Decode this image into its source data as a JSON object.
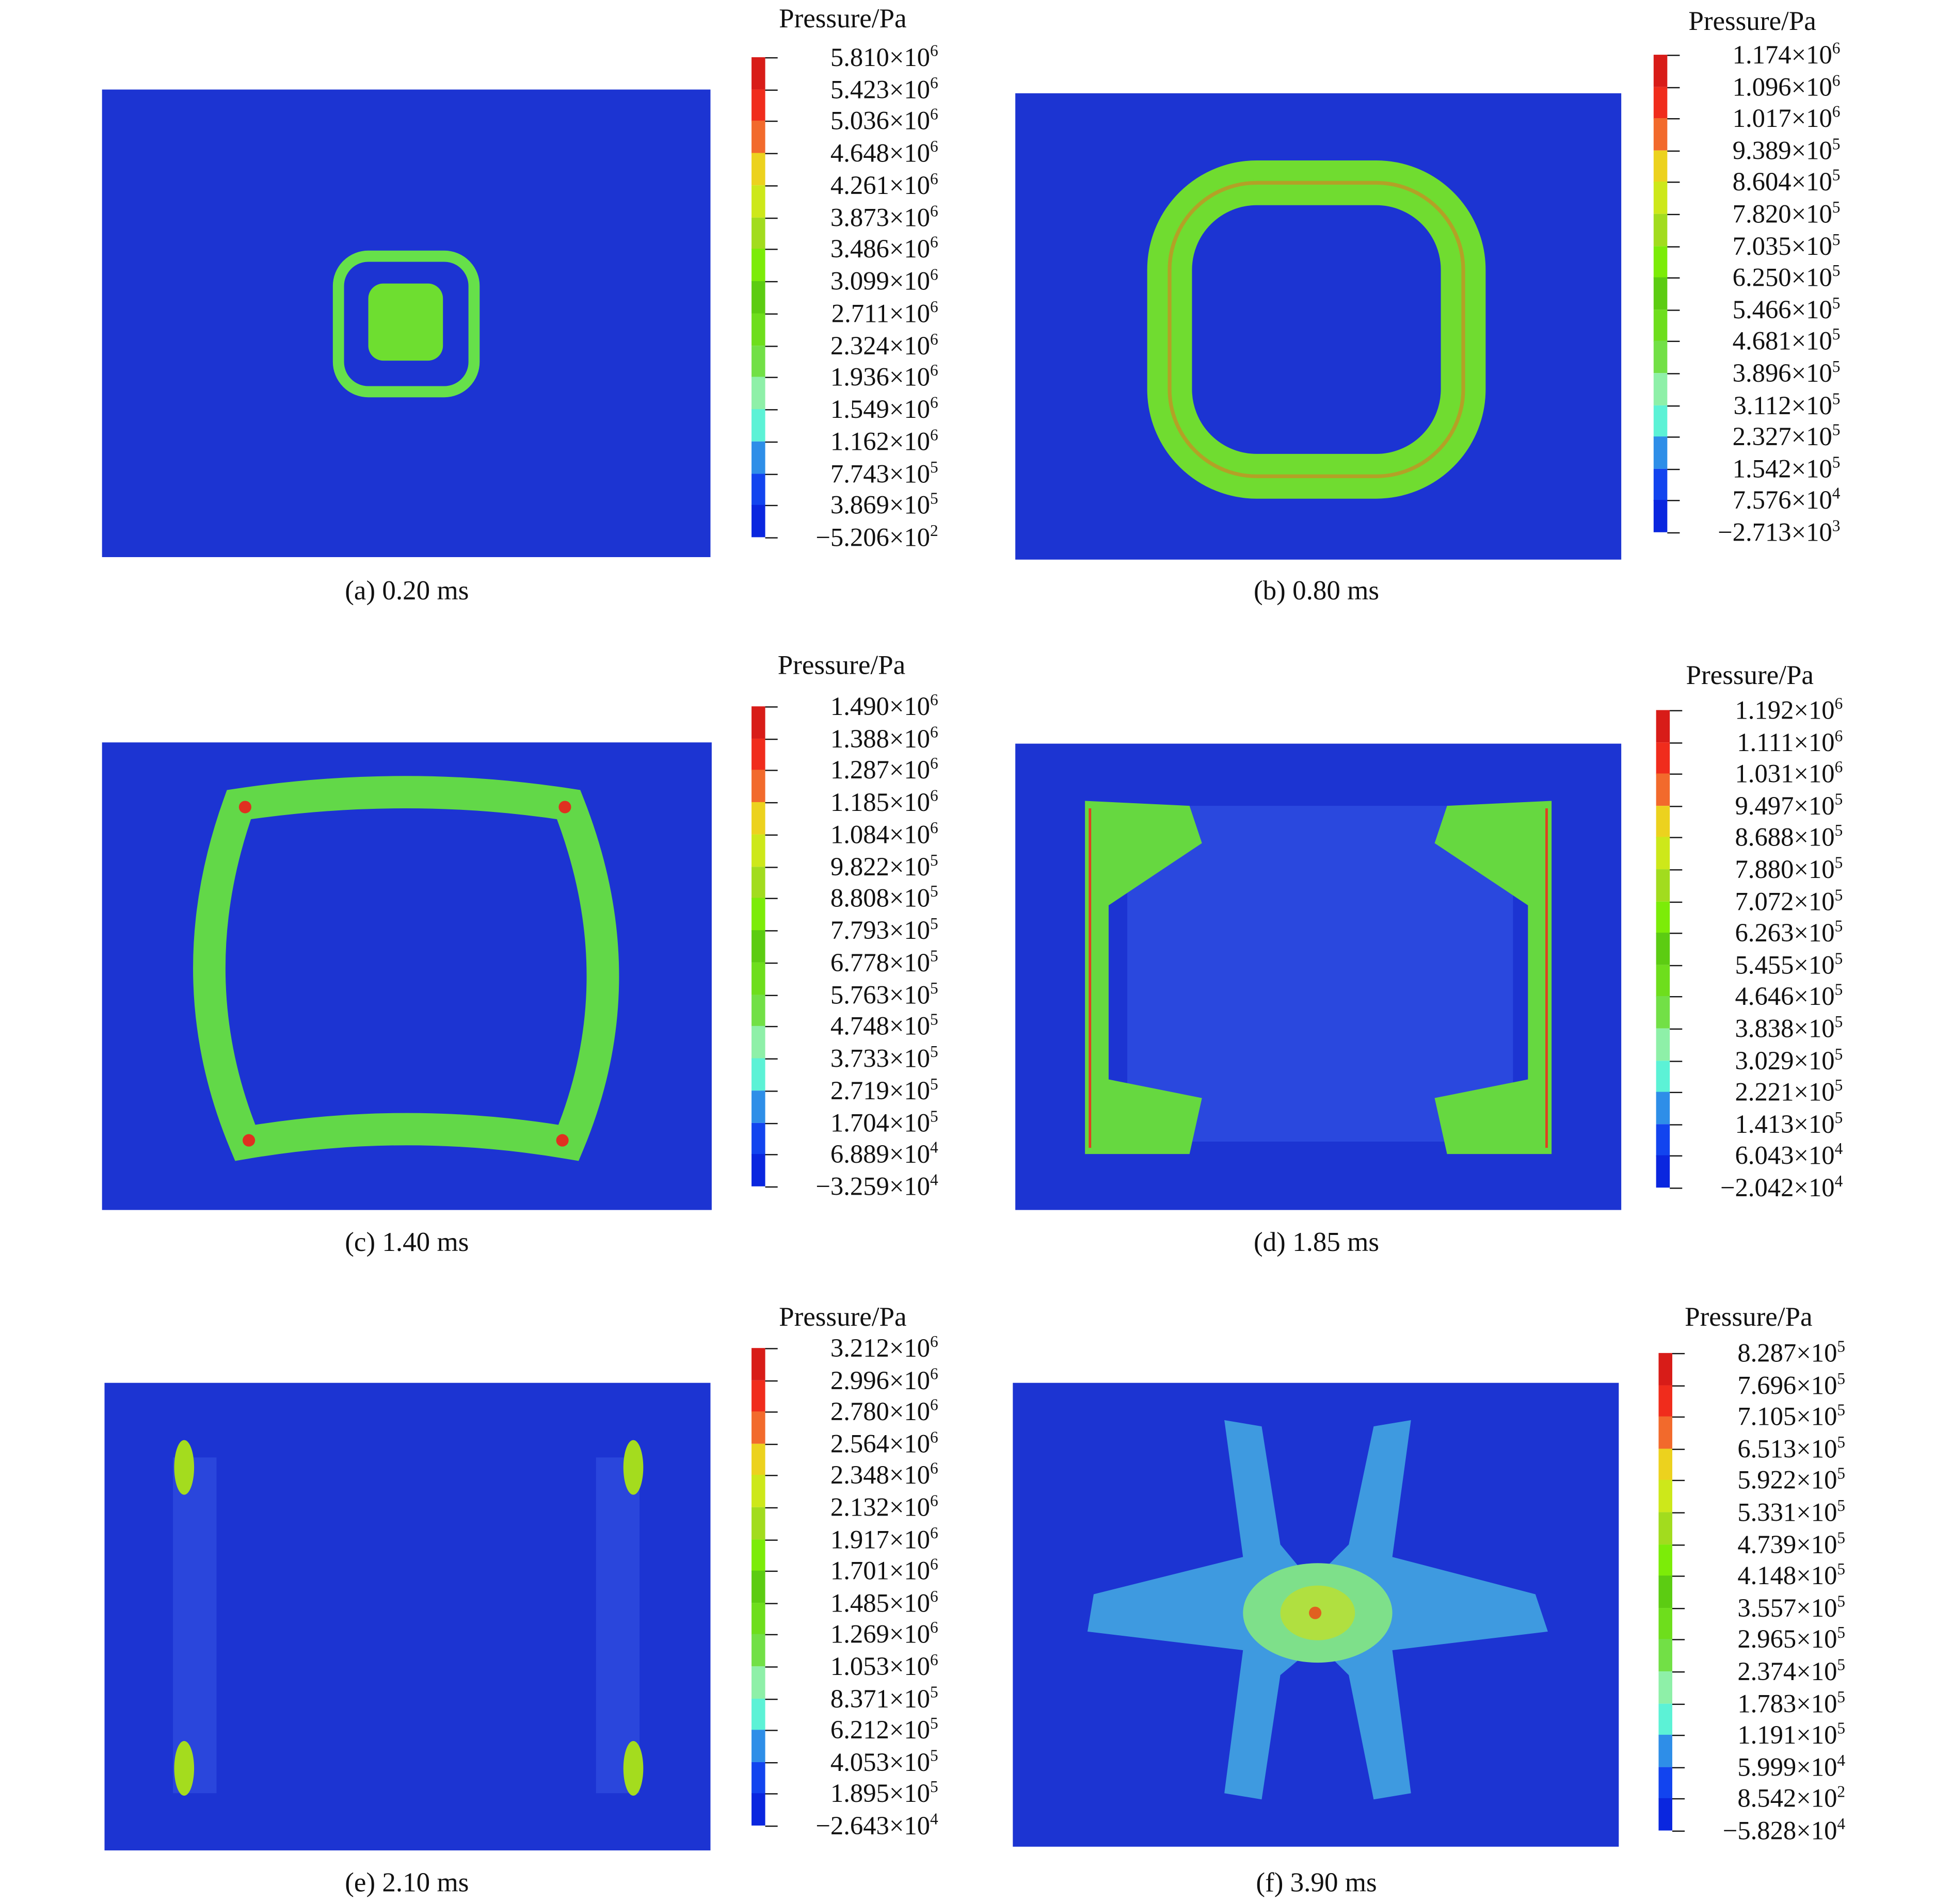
{
  "band_colors": [
    "#d81c18",
    "#f02c1c",
    "#f26a2c",
    "#ecd21e",
    "#cde81a",
    "#a2dc1e",
    "#7cec08",
    "#5ccc12",
    "#6ede1c",
    "#72e046",
    "#8ef0a8",
    "#5cf2d6",
    "#2e8ee8",
    "#1244ef",
    "#0a26df"
  ],
  "background_color": "#1c34d2",
  "chart_data": [
    {
      "type": "heatmap",
      "panel": "a",
      "caption": "(a) 0.20 ms",
      "colorbar_title": "Pressure/Pa",
      "ticks": [
        [
          "5.810",
          "6"
        ],
        [
          "5.423",
          "6"
        ],
        [
          "5.036",
          "6"
        ],
        [
          "4.648",
          "6"
        ],
        [
          "4.261",
          "6"
        ],
        [
          "3.873",
          "6"
        ],
        [
          "3.486",
          "6"
        ],
        [
          "3.099",
          "6"
        ],
        [
          "2.711",
          "6"
        ],
        [
          "2.324",
          "6"
        ],
        [
          "1.936",
          "6"
        ],
        [
          "1.549",
          "6"
        ],
        [
          "1.162",
          "6"
        ],
        [
          "7.743",
          "5"
        ],
        [
          "3.869",
          "5"
        ],
        [
          "−5.206",
          "2"
        ]
      ]
    },
    {
      "type": "heatmap",
      "panel": "b",
      "caption": "(b) 0.80 ms",
      "colorbar_title": "Pressure/Pa",
      "ticks": [
        [
          "1.174",
          "6"
        ],
        [
          "1.096",
          "6"
        ],
        [
          "1.017",
          "6"
        ],
        [
          "9.389",
          "5"
        ],
        [
          "8.604",
          "5"
        ],
        [
          "7.820",
          "5"
        ],
        [
          "7.035",
          "5"
        ],
        [
          "6.250",
          "5"
        ],
        [
          "5.466",
          "5"
        ],
        [
          "4.681",
          "5"
        ],
        [
          "3.896",
          "5"
        ],
        [
          "3.112",
          "5"
        ],
        [
          "2.327",
          "5"
        ],
        [
          "1.542",
          "5"
        ],
        [
          "7.576",
          "4"
        ],
        [
          "−2.713",
          "3"
        ]
      ]
    },
    {
      "type": "heatmap",
      "panel": "c",
      "caption": "(c) 1.40 ms",
      "colorbar_title": "Pressure/Pa",
      "ticks": [
        [
          "1.490",
          "6"
        ],
        [
          "1.388",
          "6"
        ],
        [
          "1.287",
          "6"
        ],
        [
          "1.185",
          "6"
        ],
        [
          "1.084",
          "6"
        ],
        [
          "9.822",
          "5"
        ],
        [
          "8.808",
          "5"
        ],
        [
          "7.793",
          "5"
        ],
        [
          "6.778",
          "5"
        ],
        [
          "5.763",
          "5"
        ],
        [
          "4.748",
          "5"
        ],
        [
          "3.733",
          "5"
        ],
        [
          "2.719",
          "5"
        ],
        [
          "1.704",
          "5"
        ],
        [
          "6.889",
          "4"
        ],
        [
          "−3.259",
          "4"
        ]
      ]
    },
    {
      "type": "heatmap",
      "panel": "d",
      "caption": "(d) 1.85 ms",
      "colorbar_title": "Pressure/Pa",
      "ticks": [
        [
          "1.192",
          "6"
        ],
        [
          "1.111",
          "6"
        ],
        [
          "1.031",
          "6"
        ],
        [
          "9.497",
          "5"
        ],
        [
          "8.688",
          "5"
        ],
        [
          "7.880",
          "5"
        ],
        [
          "7.072",
          "5"
        ],
        [
          "6.263",
          "5"
        ],
        [
          "5.455",
          "5"
        ],
        [
          "4.646",
          "5"
        ],
        [
          "3.838",
          "5"
        ],
        [
          "3.029",
          "5"
        ],
        [
          "2.221",
          "5"
        ],
        [
          "1.413",
          "5"
        ],
        [
          "6.043",
          "4"
        ],
        [
          "−2.042",
          "4"
        ]
      ]
    },
    {
      "type": "heatmap",
      "panel": "e",
      "caption": "(e) 2.10 ms",
      "colorbar_title": "Pressure/Pa",
      "ticks": [
        [
          "3.212",
          "6"
        ],
        [
          "2.996",
          "6"
        ],
        [
          "2.780",
          "6"
        ],
        [
          "2.564",
          "6"
        ],
        [
          "2.348",
          "6"
        ],
        [
          "2.132",
          "6"
        ],
        [
          "1.917",
          "6"
        ],
        [
          "1.701",
          "6"
        ],
        [
          "1.485",
          "6"
        ],
        [
          "1.269",
          "6"
        ],
        [
          "1.053",
          "6"
        ],
        [
          "8.371",
          "5"
        ],
        [
          "6.212",
          "5"
        ],
        [
          "4.053",
          "5"
        ],
        [
          "1.895",
          "5"
        ],
        [
          "−2.643",
          "4"
        ]
      ]
    },
    {
      "type": "heatmap",
      "panel": "f",
      "caption": "(f) 3.90 ms",
      "colorbar_title": "Pressure/Pa",
      "ticks": [
        [
          "8.287",
          "5"
        ],
        [
          "7.696",
          "5"
        ],
        [
          "7.105",
          "5"
        ],
        [
          "6.513",
          "5"
        ],
        [
          "5.922",
          "5"
        ],
        [
          "5.331",
          "5"
        ],
        [
          "4.739",
          "5"
        ],
        [
          "4.148",
          "5"
        ],
        [
          "3.557",
          "5"
        ],
        [
          "2.965",
          "5"
        ],
        [
          "2.374",
          "5"
        ],
        [
          "1.783",
          "5"
        ],
        [
          "1.191",
          "5"
        ],
        [
          "5.999",
          "4"
        ],
        [
          "8.542",
          "2"
        ],
        [
          "−5.828",
          "4"
        ]
      ]
    }
  ]
}
